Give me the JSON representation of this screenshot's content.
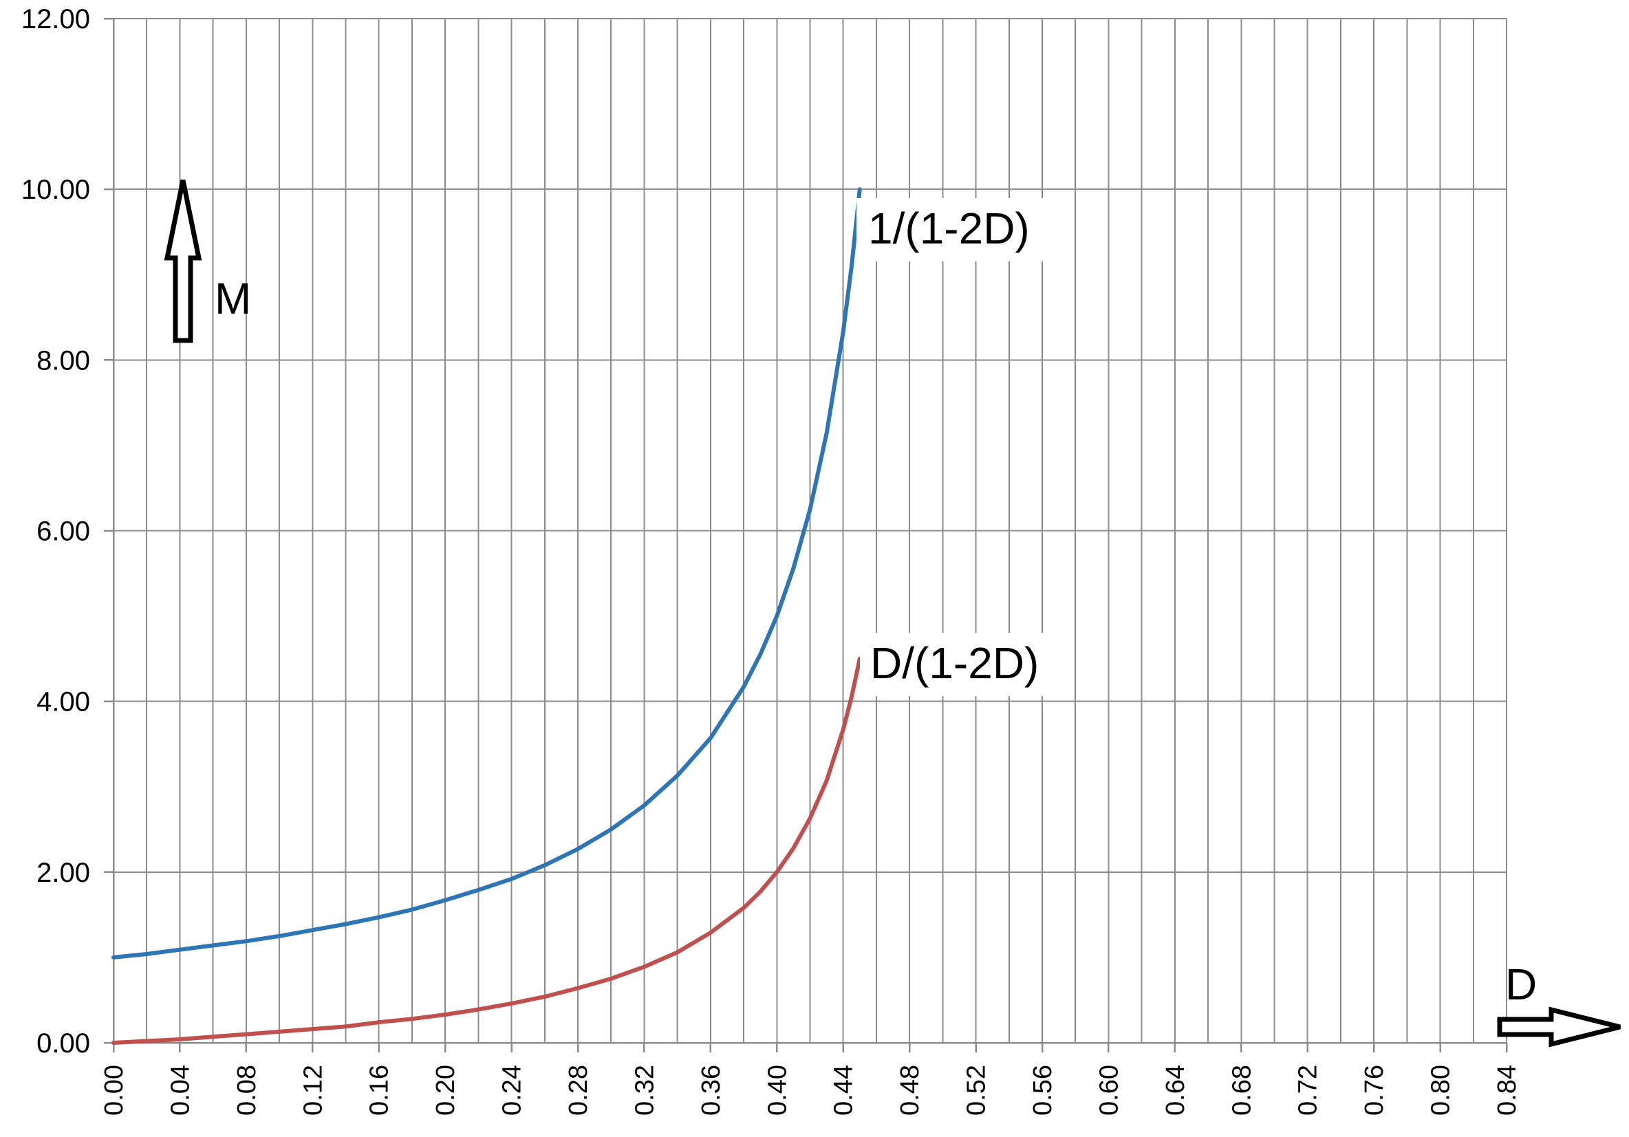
{
  "chart_data": {
    "type": "line",
    "xlabel": "D",
    "ylabel": "M",
    "xlim": [
      0,
      0.84
    ],
    "ylim": [
      0,
      12
    ],
    "x_ticks": [
      "0.00",
      "0.04",
      "0.08",
      "0.12",
      "0.16",
      "0.20",
      "0.24",
      "0.28",
      "0.32",
      "0.36",
      "0.40",
      "0.44",
      "0.48",
      "0.52",
      "0.56",
      "0.60",
      "0.64",
      "0.68",
      "0.72",
      "0.76",
      "0.80",
      "0.84"
    ],
    "y_ticks": [
      "0.00",
      "2.00",
      "4.00",
      "6.00",
      "8.00",
      "10.00",
      "12.00"
    ],
    "grid": true,
    "x": [
      0,
      0.02,
      0.04,
      0.06,
      0.08,
      0.1,
      0.12,
      0.14,
      0.16,
      0.18,
      0.2,
      0.22,
      0.24,
      0.26,
      0.28,
      0.3,
      0.32,
      0.34,
      0.36,
      0.38,
      0.39,
      0.4,
      0.41,
      0.42,
      0.43,
      0.44,
      0.445,
      0.45
    ],
    "series": [
      {
        "name": "1/(1-2D)",
        "color": "#2e75b6",
        "values": [
          1.0,
          1.04,
          1.09,
          1.14,
          1.19,
          1.25,
          1.32,
          1.39,
          1.47,
          1.56,
          1.67,
          1.79,
          1.92,
          2.08,
          2.27,
          2.5,
          2.78,
          3.13,
          3.57,
          4.17,
          4.55,
          5.0,
          5.56,
          6.25,
          7.14,
          8.33,
          9.09,
          10.0
        ]
      },
      {
        "name": "D/(1-2D)",
        "color": "#c0504d",
        "values": [
          0.0,
          0.02,
          0.04,
          0.07,
          0.1,
          0.13,
          0.16,
          0.19,
          0.24,
          0.28,
          0.33,
          0.39,
          0.46,
          0.54,
          0.64,
          0.75,
          0.89,
          1.06,
          1.29,
          1.58,
          1.77,
          2.0,
          2.28,
          2.63,
          3.07,
          3.67,
          4.05,
          4.5
        ]
      }
    ]
  }
}
